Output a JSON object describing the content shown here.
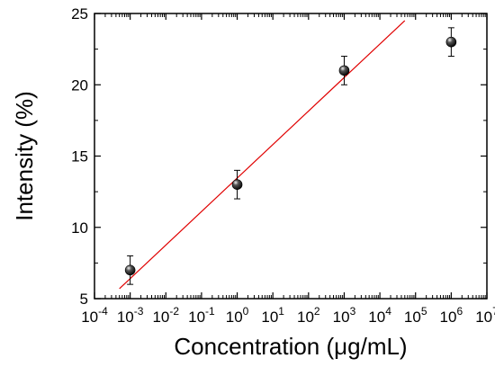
{
  "chart_data": {
    "type": "scatter",
    "title": "",
    "xlabel": "Concentration (μg/mL)",
    "ylabel": "Intensity (%)",
    "xscale": "log",
    "xlim": [
      0.0001,
      10000000
    ],
    "ylim": [
      5,
      25
    ],
    "x_ticks": [
      {
        "value": 0.0001,
        "base": "10",
        "exp": "-4"
      },
      {
        "value": 0.001,
        "base": "10",
        "exp": "-3"
      },
      {
        "value": 0.01,
        "base": "10",
        "exp": "-2"
      },
      {
        "value": 0.1,
        "base": "10",
        "exp": "-1"
      },
      {
        "value": 1,
        "base": "10",
        "exp": "0"
      },
      {
        "value": 10,
        "base": "10",
        "exp": "1"
      },
      {
        "value": 100,
        "base": "10",
        "exp": "2"
      },
      {
        "value": 1000,
        "base": "10",
        "exp": "3"
      },
      {
        "value": 10000,
        "base": "10",
        "exp": "4"
      },
      {
        "value": 100000,
        "base": "10",
        "exp": "5"
      },
      {
        "value": 1000000,
        "base": "10",
        "exp": "6"
      },
      {
        "value": 10000000,
        "base": "10",
        "exp": "7"
      }
    ],
    "y_ticks": [
      {
        "value": 5,
        "label": "5"
      },
      {
        "value": 10,
        "label": "10"
      },
      {
        "value": 15,
        "label": "15"
      },
      {
        "value": 20,
        "label": "20"
      },
      {
        "value": 25,
        "label": "25"
      }
    ],
    "series": [
      {
        "x": [
          0.001,
          1,
          1000,
          1000000
        ],
        "y": [
          7,
          13,
          21,
          23
        ],
        "error": [
          1,
          1,
          1,
          1
        ],
        "color": "#000000"
      }
    ],
    "fit_line": {
      "x": [
        0.0005,
        50000
      ],
      "y": [
        5.7,
        24.5
      ],
      "color": "#e00000"
    },
    "grid": false,
    "legend": "none"
  }
}
